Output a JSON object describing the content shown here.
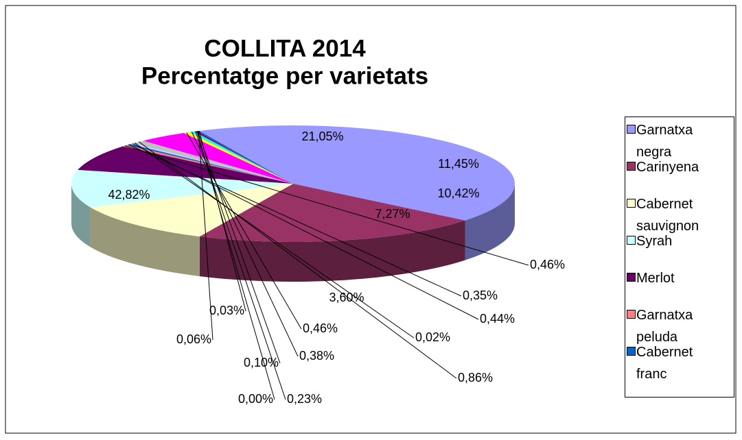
{
  "chart_data": {
    "type": "pie",
    "title": [
      "COLLITA 2014",
      "Percentatge per varietats"
    ],
    "categories": [
      "Garnatxa negra",
      "Carinyena",
      "Cabernet sauvignon",
      "Syrah",
      "Merlot",
      "Garnatxa peluda",
      "Cabernet franc",
      null,
      null,
      null,
      null,
      null,
      null,
      null,
      null,
      null,
      null,
      null
    ],
    "values": [
      42.82,
      21.05,
      11.45,
      10.42,
      7.27,
      0.46,
      0.35,
      0.44,
      0.02,
      0.86,
      3.6,
      0.46,
      0.38,
      0.23,
      0.0,
      0.1,
      0.06,
      0.03
    ],
    "value_labels": [
      "42,82%",
      "21,05%",
      "11,45%",
      "10,42%",
      "7,27%",
      "0,46%",
      "0,35%",
      "0,44%",
      "0,02%",
      "0,86%",
      "3,60%",
      "0,46%",
      "0,38%",
      "0,23%",
      "0,00%",
      "0,10%",
      "0,06%",
      "0,03%"
    ],
    "colors": [
      "#9999ff",
      "#993366",
      "#ffffcc",
      "#ccffff",
      "#660066",
      "#ff8080",
      "#0066cc",
      "#ccccff",
      "#000080",
      "#c0c0c0",
      "#ff00ff",
      "#ffff00",
      "#00ffff",
      "#800080",
      "#800000",
      "#008080",
      "#0000ff",
      "#00ccff"
    ],
    "legend": "right"
  }
}
